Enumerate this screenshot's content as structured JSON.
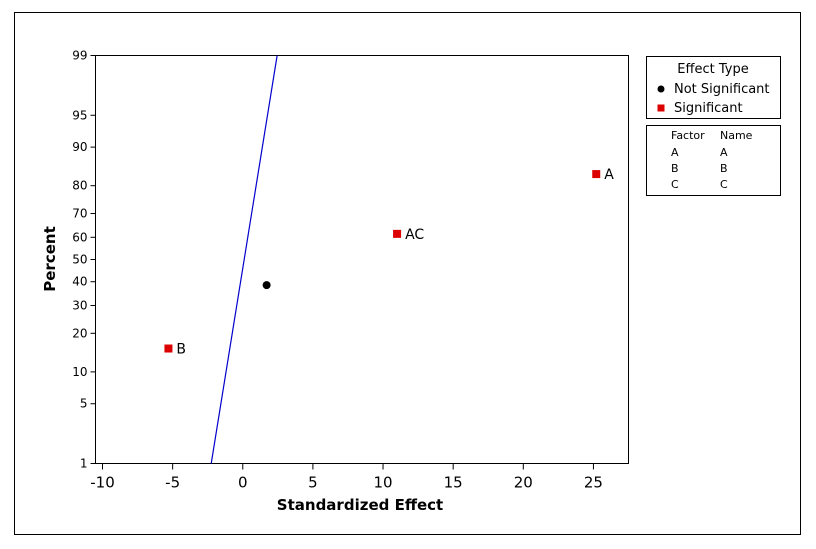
{
  "chart_data": {
    "type": "scatter",
    "title": "",
    "xlabel": "Standardized Effect",
    "ylabel": "Percent",
    "xlim": [
      -10.5,
      27.5
    ],
    "x_ticks": [
      -10,
      -5,
      0,
      5,
      10,
      15,
      20,
      25
    ],
    "x_tick_labels": [
      "-10",
      "-5",
      "0",
      "5",
      "10",
      "15",
      "20",
      "25"
    ],
    "y_scale": "normal-probability",
    "ylim": [
      1,
      99
    ],
    "y_ticks": [
      1,
      5,
      10,
      20,
      30,
      40,
      50,
      60,
      70,
      80,
      90,
      95,
      99
    ],
    "y_tick_labels": [
      "1",
      "5",
      "10",
      "20",
      "30",
      "40",
      "50",
      "60",
      "70",
      "80",
      "90",
      "95",
      "99"
    ],
    "fit_line": {
      "color": "#0000cc",
      "points": [
        {
          "x": -2.25,
          "y": 1
        },
        {
          "x": 2.45,
          "y": 99
        }
      ]
    },
    "series": [
      {
        "name": "Not Significant",
        "marker": "circle",
        "color": "#000000",
        "points": [
          {
            "x": 1.7,
            "y": 38.5,
            "label": ""
          }
        ]
      },
      {
        "name": "Significant",
        "marker": "square",
        "color": "#dd0000",
        "points": [
          {
            "x": -5.3,
            "y": 15.5,
            "label": "B"
          },
          {
            "x": 11.0,
            "y": 61.5,
            "label": "AC"
          },
          {
            "x": 25.2,
            "y": 83.5,
            "label": "A"
          }
        ]
      }
    ],
    "legend": {
      "placement": "right",
      "title": "Effect Type",
      "items": [
        {
          "label": "Not Significant",
          "marker": "circle",
          "color": "#000000"
        },
        {
          "label": "Significant",
          "marker": "square",
          "color": "#dd0000"
        }
      ]
    },
    "factor_table": {
      "headers": [
        "Factor",
        "Name"
      ],
      "rows": [
        [
          "A",
          "A"
        ],
        [
          "B",
          "B"
        ],
        [
          "C",
          "C"
        ]
      ]
    }
  }
}
